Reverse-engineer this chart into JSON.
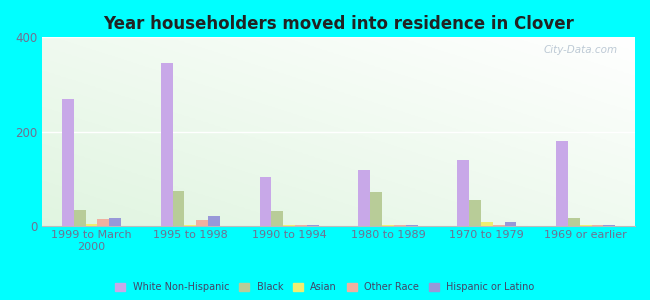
{
  "title": "Year householders moved into residence in Clover",
  "categories": [
    "1999 to March\n2000",
    "1995 to 1998",
    "1990 to 1994",
    "1980 to 1989",
    "1970 to 1979",
    "1969 or earlier"
  ],
  "series": {
    "White Non-Hispanic": [
      270,
      345,
      105,
      120,
      140,
      180
    ],
    "Black": [
      35,
      75,
      33,
      73,
      55,
      18
    ],
    "Asian": [
      5,
      3,
      3,
      3,
      8,
      2
    ],
    "Other Race": [
      16,
      13,
      3,
      3,
      3,
      2
    ],
    "Hispanic or Latino": [
      18,
      22,
      3,
      3,
      8,
      2
    ]
  },
  "colors": {
    "White Non-Hispanic": "#c8a8e8",
    "Black": "#b8cc98",
    "Asian": "#f0ee70",
    "Other Race": "#f0b0a0",
    "Hispanic or Latino": "#9898d8"
  },
  "ylim": [
    0,
    400
  ],
  "yticks": [
    0,
    200,
    400
  ],
  "background_color_outer": "#00ffff",
  "watermark": "City-Data.com",
  "bar_width": 0.12
}
